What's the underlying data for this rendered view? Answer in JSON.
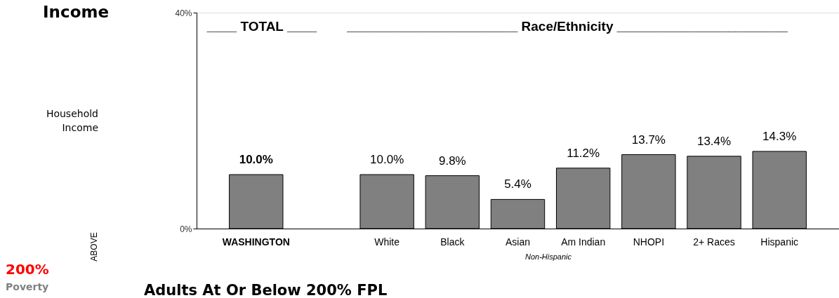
{
  "chart_data": {
    "type": "bar",
    "categories": [
      "WASHINGTON",
      null,
      "White",
      "Black",
      "Asian",
      "Am Indian",
      "NHOPI",
      "2+ Races",
      "Hispanic"
    ],
    "values": [
      10.0,
      null,
      10.0,
      9.8,
      5.4,
      11.2,
      13.7,
      13.4,
      14.3
    ],
    "color": "#808080",
    "value_labels": [
      "10.0%",
      null,
      "10.0%",
      "9.8%",
      "5.4%",
      "11.2%",
      "13.7%",
      "13.4%",
      "14.3%"
    ],
    "ylim": [
      0,
      40
    ],
    "yticks": [
      {
        "value": 0,
        "label": "0%"
      },
      {
        "value": 40,
        "label": "40%"
      }
    ],
    "annotations": [
      "____ TOTAL ____",
      "_______________________ Race/Ethnicity _______________________",
      "Non-Hispanic",
      "Income",
      "Household",
      "Income",
      "ABOVE",
      "200%",
      "Poverty",
      "Adults At Or Below 200% FPL"
    ]
  }
}
